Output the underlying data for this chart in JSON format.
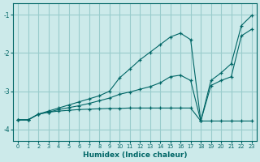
{
  "xlabel": "Humidex (Indice chaleur)",
  "bg_color": "#cceaea",
  "grid_color": "#99cccc",
  "line_color": "#006666",
  "xlim": [
    -0.5,
    23.5
  ],
  "ylim": [
    -4.3,
    -0.7
  ],
  "yticks": [
    -4,
    -3,
    -2,
    -1
  ],
  "xticks": [
    0,
    1,
    2,
    3,
    4,
    5,
    6,
    7,
    8,
    9,
    10,
    11,
    12,
    13,
    14,
    15,
    16,
    17,
    18,
    19,
    20,
    21,
    22,
    23
  ],
  "line1_x": [
    0,
    1,
    2,
    3,
    4,
    5,
    6,
    7,
    8,
    9,
    10,
    11,
    12,
    13,
    14,
    15,
    16,
    17,
    18,
    19,
    20,
    21,
    22,
    23
  ],
  "line1_y": [
    -3.75,
    -3.75,
    -3.6,
    -3.55,
    -3.52,
    -3.5,
    -3.48,
    -3.47,
    -3.46,
    -3.45,
    -3.45,
    -3.44,
    -3.44,
    -3.44,
    -3.44,
    -3.44,
    -3.44,
    -3.44,
    -3.78,
    -3.78,
    -3.78,
    -3.78,
    -3.78,
    -3.78
  ],
  "line2_x": [
    0,
    1,
    2,
    3,
    4,
    5,
    6,
    7,
    8,
    9,
    10,
    11,
    12,
    13,
    14,
    15,
    16,
    17,
    18,
    19,
    20,
    21,
    22,
    23
  ],
  "line2_y": [
    -3.75,
    -3.75,
    -3.6,
    -3.55,
    -3.48,
    -3.43,
    -3.38,
    -3.32,
    -3.25,
    -3.18,
    -3.08,
    -3.02,
    -2.95,
    -2.88,
    -2.78,
    -2.62,
    -2.58,
    -2.72,
    -3.78,
    -2.85,
    -2.72,
    -2.62,
    -1.55,
    -1.38
  ],
  "line3_x": [
    0,
    1,
    2,
    3,
    4,
    5,
    6,
    7,
    8,
    9,
    10,
    11,
    12,
    13,
    14,
    15,
    16,
    17,
    18,
    19,
    20,
    21,
    22,
    23
  ],
  "line3_y": [
    -3.75,
    -3.75,
    -3.6,
    -3.52,
    -3.44,
    -3.36,
    -3.28,
    -3.2,
    -3.12,
    -3.0,
    -2.65,
    -2.42,
    -2.18,
    -1.98,
    -1.78,
    -1.58,
    -1.48,
    -1.65,
    -3.78,
    -2.72,
    -2.52,
    -2.28,
    -1.28,
    -1.02
  ]
}
